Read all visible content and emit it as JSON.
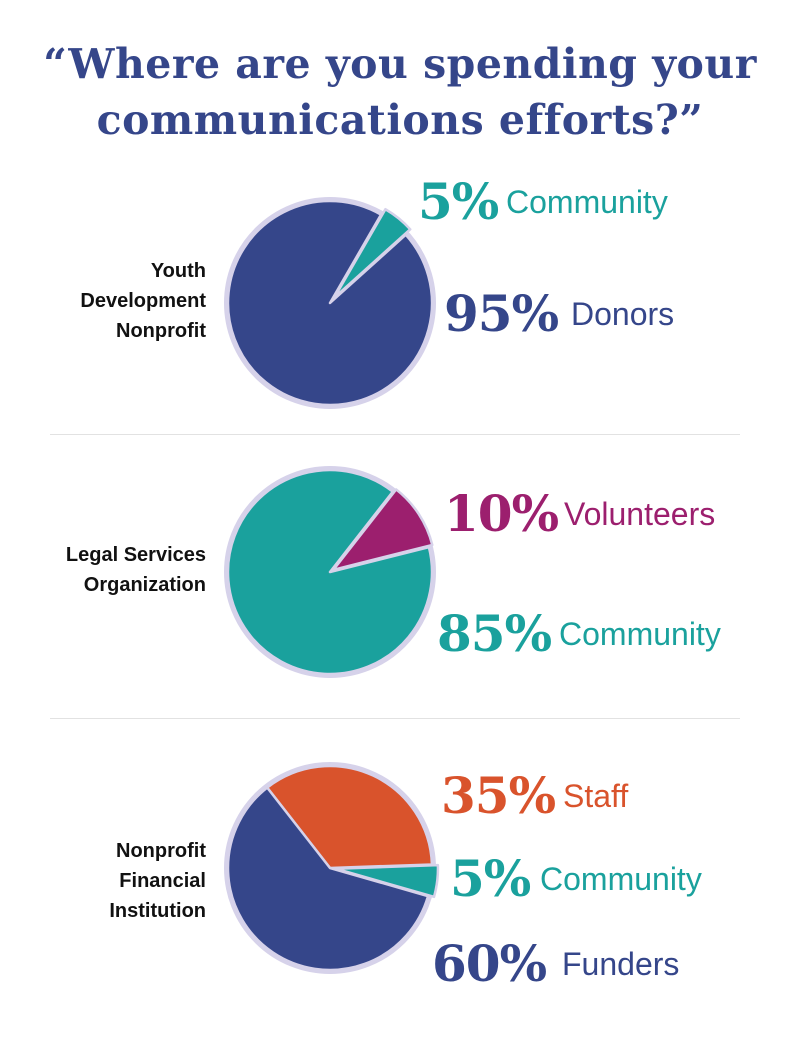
{
  "title_lines": [
    "“Where are you spending your",
    "communications efforts?”"
  ],
  "colors": {
    "navy": "#35468a",
    "teal": "#1aa19d",
    "magenta": "#9c1f6e",
    "orange": "#d9532c",
    "outline": "#d6d2ea"
  },
  "chart_data": [
    {
      "type": "pie",
      "title_lines": [
        "Youth",
        "Development",
        "Nonprofit"
      ],
      "slices": [
        {
          "label": "Community",
          "pct_text": "5%",
          "value": 5,
          "color": "#1aa19d"
        },
        {
          "label": "Donors",
          "pct_text": "95%",
          "value": 95,
          "color": "#35468a"
        }
      ]
    },
    {
      "type": "pie",
      "title_lines": [
        "Legal Services",
        "Organization"
      ],
      "slices": [
        {
          "label": "Volunteers",
          "pct_text": "10%",
          "value": 10,
          "color": "#9c1f6e"
        },
        {
          "label": "Community",
          "pct_text": "85%",
          "value": 85,
          "color": "#1aa19d"
        }
      ]
    },
    {
      "type": "pie",
      "title_lines": [
        "Nonprofit",
        "Financial",
        "Institution"
      ],
      "slices": [
        {
          "label": "Staff",
          "pct_text": "35%",
          "value": 35,
          "color": "#d9532c"
        },
        {
          "label": "Community",
          "pct_text": "5%",
          "value": 5,
          "color": "#1aa19d"
        },
        {
          "label": "Funders",
          "pct_text": "60%",
          "value": 60,
          "color": "#35468a"
        }
      ]
    }
  ]
}
